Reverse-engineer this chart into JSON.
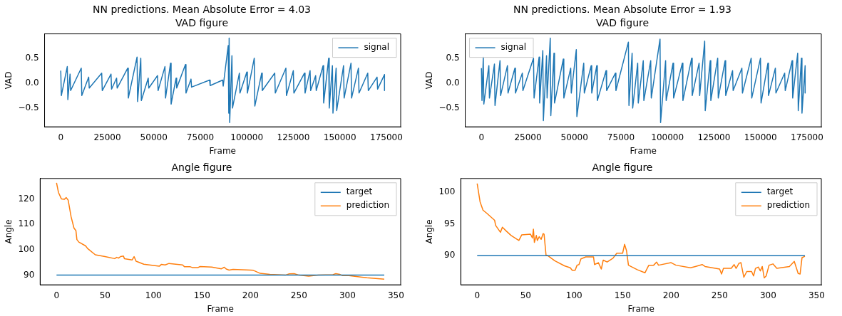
{
  "chart_data": [
    {
      "type": "line",
      "title": "NN predictions. Mean Absolute Error = 4.03",
      "subtitle": "VAD figure",
      "xlabel": "Frame",
      "ylabel": "VAD",
      "legend": "top right",
      "xlim": [
        -8700,
        182700
      ],
      "xticks": [
        0,
        25000,
        50000,
        75000,
        100000,
        125000,
        150000,
        175000
      ],
      "ylim": [
        -0.875,
        0.985
      ],
      "yticks": [
        {
          "value": -0.5,
          "label": "−0.5"
        },
        {
          "value": 0,
          "label": "0.0"
        },
        {
          "value": 0.5,
          "label": "0.5"
        }
      ],
      "series": [
        {
          "name": "signal",
          "color": "#1f77b4",
          "x": [
            0,
            300,
            3500,
            3800,
            5000,
            5300,
            11000,
            11300,
            15000,
            15300,
            22000,
            22300,
            27000,
            27300,
            30000,
            30300,
            36000,
            36300,
            41000,
            41300,
            43000,
            43300,
            47000,
            47300,
            52000,
            52300,
            56000,
            56300,
            59000,
            59300,
            62000,
            62300,
            67000,
            67300,
            70000,
            70300,
            80000,
            80300,
            87000,
            87300,
            90000,
            90300,
            90500,
            90800,
            92000,
            92300,
            96000,
            96300,
            100000,
            100300,
            104000,
            104300,
            108000,
            108300,
            115000,
            115300,
            121000,
            121300,
            125000,
            125300,
            131000,
            131300,
            134000,
            134300,
            137000,
            137300,
            141000,
            141300,
            144000,
            144300,
            146000,
            146300,
            148000,
            148300,
            152000,
            152300,
            156000,
            156300,
            160000,
            160300,
            165000,
            165300,
            170000,
            170300,
            174000,
            174000
          ],
          "values": [
            0.25,
            -0.25,
            0.33,
            -0.33,
            0.18,
            -0.15,
            0.3,
            -0.25,
            0.12,
            -0.1,
            0.2,
            -0.15,
            0.18,
            -0.12,
            0.1,
            -0.1,
            0.3,
            -0.3,
            0.52,
            -0.37,
            0.5,
            -0.35,
            0.1,
            -0.1,
            0.15,
            -0.15,
            0.33,
            -0.3,
            0.4,
            -0.42,
            0.1,
            -0.1,
            0.37,
            -0.2,
            0.08,
            -0.08,
            0.06,
            -0.05,
            0.06,
            -0.06,
            0.75,
            -0.6,
            0.9,
            -0.79,
            0.55,
            -0.5,
            0.2,
            -0.2,
            0.22,
            -0.2,
            0.5,
            -0.46,
            0.2,
            -0.15,
            0.2,
            -0.2,
            0.3,
            -0.25,
            0.25,
            -0.2,
            0.2,
            -0.2,
            0.25,
            -0.15,
            0.15,
            -0.15,
            0.35,
            -0.4,
            0.5,
            -0.5,
            0.35,
            -0.6,
            0.3,
            -0.55,
            0.35,
            -0.3,
            0.4,
            -0.3,
            0.3,
            -0.2,
            0.2,
            -0.15,
            0.12,
            -0.12,
            0.17,
            -0.15
          ]
        }
      ]
    },
    {
      "type": "line",
      "title": "NN predictions. Mean Absolute Error = 1.93",
      "subtitle": "VAD figure",
      "xlabel": "Frame",
      "ylabel": "VAD",
      "legend": "top left",
      "xlim": [
        -8700,
        182700
      ],
      "xticks": [
        0,
        25000,
        50000,
        75000,
        100000,
        125000,
        150000,
        175000
      ],
      "ylim": [
        -0.875,
        0.985
      ],
      "yticks": [
        {
          "value": -0.5,
          "label": "−0.5"
        },
        {
          "value": 0,
          "label": "0.0"
        },
        {
          "value": 0.5,
          "label": "0.5"
        }
      ],
      "series": [
        {
          "name": "signal",
          "color": "#1f77b4",
          "x": [
            0,
            300,
            1000,
            1300,
            4000,
            4300,
            7000,
            7300,
            10000,
            10300,
            14000,
            14300,
            18000,
            18300,
            22000,
            22300,
            28000,
            28300,
            31000,
            31300,
            33000,
            33300,
            35000,
            35300,
            37000,
            37300,
            39000,
            39300,
            44000,
            44300,
            48000,
            48300,
            51000,
            51300,
            55000,
            55300,
            59000,
            59300,
            62000,
            62300,
            67000,
            67300,
            72000,
            72300,
            79000,
            79300,
            81000,
            81300,
            84000,
            84300,
            87000,
            87300,
            91000,
            91300,
            96000,
            96300,
            99000,
            99300,
            103000,
            103300,
            108000,
            108300,
            113000,
            113300,
            117000,
            117300,
            120000,
            120300,
            123000,
            123300,
            127000,
            127300,
            131000,
            131300,
            135000,
            135300,
            140000,
            140300,
            145000,
            145300,
            150000,
            150300,
            154000,
            154300,
            158000,
            158300,
            163000,
            163300,
            167000,
            167300,
            170000,
            170300,
            172000,
            172300,
            174000,
            174000
          ],
          "values": [
            0.3,
            -0.35,
            0.52,
            -0.42,
            0.35,
            -0.3,
            0.38,
            -0.45,
            0.45,
            -0.25,
            0.35,
            -0.2,
            0.3,
            -0.2,
            0.2,
            -0.15,
            0.5,
            -0.3,
            0.52,
            -0.4,
            0.65,
            -0.75,
            0.55,
            -0.3,
            0.9,
            -0.65,
            0.6,
            -0.4,
            0.48,
            -0.3,
            0.3,
            -0.2,
            0.67,
            -0.67,
            0.4,
            -0.2,
            0.35,
            -0.2,
            0.35,
            -0.35,
            0.25,
            -0.15,
            0.2,
            -0.15,
            0.82,
            -0.45,
            0.6,
            -0.5,
            0.4,
            -0.4,
            0.45,
            -0.35,
            0.45,
            -0.3,
            0.88,
            -0.79,
            0.45,
            -0.35,
            0.4,
            -0.3,
            0.4,
            -0.35,
            0.5,
            -0.25,
            0.4,
            -0.25,
            0.84,
            -0.55,
            0.45,
            -0.35,
            0.5,
            -0.3,
            0.45,
            -0.25,
            0.25,
            -0.15,
            0.3,
            -0.2,
            0.5,
            -0.3,
            0.5,
            -0.4,
            0.4,
            -0.25,
            0.3,
            -0.2,
            0.2,
            -0.15,
            0.45,
            -0.3,
            0.6,
            -0.55,
            0.5,
            -0.6,
            0.35,
            -0.2
          ]
        }
      ]
    },
    {
      "type": "line",
      "title": "Angle figure",
      "xlabel": "Frame",
      "ylabel": "Angle",
      "legend": "top right",
      "xlim": [
        -16.9,
        354.9
      ],
      "xticks": [
        0,
        50,
        100,
        150,
        200,
        250,
        300,
        350
      ],
      "ylim": [
        86.2,
        128
      ],
      "yticks": [
        90,
        100,
        110,
        120
      ],
      "series": [
        {
          "name": "target",
          "color": "#1f77b4",
          "x": [
            0,
            338
          ],
          "values": [
            90,
            90
          ]
        },
        {
          "name": "prediction",
          "color": "#ff7f0e",
          "x": [
            0,
            2,
            5,
            8,
            10,
            12,
            15,
            18,
            20,
            21,
            23,
            30,
            32,
            40,
            50,
            60,
            62,
            64,
            66,
            69,
            70,
            78,
            80,
            82,
            90,
            100,
            106,
            108,
            112,
            116,
            130,
            132,
            138,
            140,
            146,
            148,
            160,
            170,
            173,
            175,
            178,
            182,
            200,
            203,
            210,
            220,
            236,
            240,
            245,
            250,
            260,
            270,
            285,
            288,
            292,
            295,
            300,
            320,
            338
          ],
          "values": [
            126.3,
            122.5,
            120,
            119.8,
            120.5,
            119.5,
            113,
            108.5,
            107.5,
            104,
            103,
            101.5,
            100.5,
            98,
            97.3,
            96.5,
            97,
            96.7,
            97.3,
            97.5,
            96.5,
            96,
            97.3,
            95.5,
            94.3,
            93.8,
            93.5,
            94.2,
            94,
            94.6,
            94,
            93.3,
            93.3,
            93,
            93,
            93.4,
            93.2,
            92.5,
            93.1,
            92.4,
            92,
            92.3,
            92,
            91.9,
            90.7,
            90.3,
            90,
            90.5,
            90.6,
            90,
            89.6,
            90,
            90.2,
            90.6,
            90.3,
            89.8,
            89.9,
            89,
            88.4
          ]
        }
      ]
    },
    {
      "type": "line",
      "title": "Angle figure",
      "xlabel": "Frame",
      "ylabel": "Angle",
      "legend": "top right",
      "xlim": [
        -16.9,
        354.9
      ],
      "xticks": [
        0,
        50,
        100,
        150,
        200,
        250,
        300,
        350
      ],
      "ylim": [
        85.4,
        102.2
      ],
      "yticks": [
        90,
        95,
        100
      ],
      "series": [
        {
          "name": "target",
          "color": "#1f77b4",
          "x": [
            0,
            338
          ],
          "values": [
            90,
            90
          ]
        },
        {
          "name": "prediction",
          "color": "#ff7f0e",
          "x": [
            0,
            3,
            6,
            10,
            18,
            19,
            24,
            26,
            30,
            35,
            43,
            46,
            55,
            57,
            58,
            59,
            61,
            62,
            64,
            66,
            68,
            69,
            71,
            73,
            80,
            90,
            96,
            98,
            101,
            103,
            105,
            107,
            112,
            120,
            121,
            125,
            128,
            130,
            134,
            140,
            144,
            150,
            152,
            154,
            156,
            165,
            173,
            177,
            182,
            185,
            187,
            200,
            205,
            220,
            225,
            232,
            235,
            250,
            252,
            254,
            262,
            265,
            267,
            270,
            272,
            275,
            278,
            283,
            285,
            287,
            290,
            292,
            294,
            296,
            298,
            301,
            305,
            309,
            313,
            322,
            327,
            331,
            333,
            335,
            338
          ],
          "values": [
            101.4,
            98.5,
            97.2,
            96.7,
            95.6,
            94.8,
            93.7,
            94.5,
            93.9,
            93.2,
            92.4,
            93.3,
            93.4,
            92.8,
            94.2,
            92.1,
            93.2,
            92.4,
            93,
            92.6,
            93.5,
            93.4,
            90.1,
            90,
            89.2,
            88.4,
            88.1,
            87.7,
            87.7,
            88.5,
            88.6,
            89.5,
            89.8,
            89.8,
            88.6,
            88.9,
            87.9,
            89.3,
            89,
            89.6,
            90.4,
            90.4,
            91.8,
            90.8,
            88.5,
            87.8,
            87.3,
            88.5,
            88.5,
            89,
            88.5,
            88.9,
            88.5,
            88.1,
            88.3,
            88.6,
            88.3,
            87.9,
            87.1,
            88,
            88,
            88.6,
            88,
            88.8,
            88.9,
            86.6,
            87.5,
            87.5,
            86.8,
            88,
            88.2,
            87.6,
            88.3,
            86.5,
            86.8,
            88.5,
            88.7,
            88,
            88.1,
            88.3,
            89.1,
            87.2,
            87.1,
            89.7,
            89.9
          ]
        }
      ]
    }
  ]
}
